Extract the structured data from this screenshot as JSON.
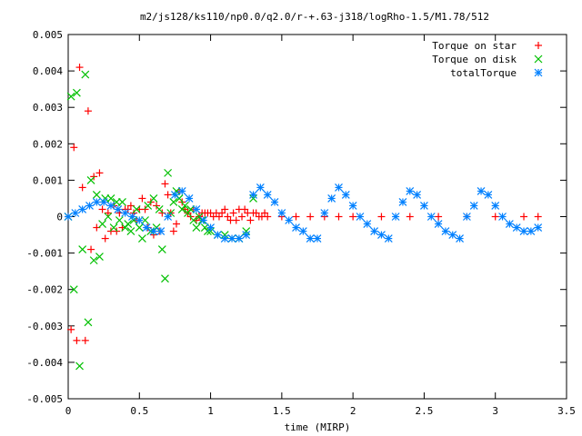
{
  "chart_data": {
    "type": "scatter",
    "title": "m2/js128/ks110/np0.0/q2.0/r-+.63-j318/logRho-1.5/M1.78/512",
    "xlabel": "time (MIRP)",
    "ylabel": "",
    "xlim": [
      0,
      3.5
    ],
    "ylim": [
      -0.005,
      0.005
    ],
    "xticks": [
      0,
      0.5,
      1,
      1.5,
      2,
      2.5,
      3,
      3.5
    ],
    "xtick_labels": [
      "0",
      "0.5",
      "1",
      "1.5",
      "2",
      "2.5",
      "3",
      "3.5"
    ],
    "yticks": [
      -0.005,
      -0.004,
      -0.003,
      -0.002,
      -0.001,
      0,
      0.001,
      0.002,
      0.003,
      0.004,
      0.005
    ],
    "ytick_labels": [
      "-0.005",
      "-0.004",
      "-0.003",
      "-0.002",
      "-0.001",
      "0",
      "0.001",
      "0.002",
      "0.003",
      "0.004",
      "0.005"
    ],
    "grid": false,
    "legend_position": "top-right",
    "series": [
      {
        "name": "Torque on star",
        "marker": "plus",
        "color": "#ff0000",
        "x": [
          0.0,
          0.02,
          0.04,
          0.06,
          0.08,
          0.1,
          0.12,
          0.14,
          0.16,
          0.18,
          0.2,
          0.22,
          0.24,
          0.26,
          0.28,
          0.3,
          0.32,
          0.34,
          0.36,
          0.38,
          0.4,
          0.42,
          0.44,
          0.46,
          0.48,
          0.5,
          0.52,
          0.54,
          0.56,
          0.58,
          0.6,
          0.62,
          0.64,
          0.66,
          0.68,
          0.7,
          0.72,
          0.74,
          0.76,
          0.78,
          0.8,
          0.82,
          0.84,
          0.86,
          0.88,
          0.9,
          0.92,
          0.94,
          0.96,
          0.98,
          1.0,
          1.02,
          1.04,
          1.06,
          1.08,
          1.1,
          1.12,
          1.14,
          1.16,
          1.18,
          1.2,
          1.22,
          1.24,
          1.26,
          1.28,
          1.3,
          1.32,
          1.34,
          1.36,
          1.38,
          1.4,
          1.5,
          1.6,
          1.7,
          1.8,
          1.9,
          2.0,
          2.2,
          2.4,
          2.6,
          2.8,
          3.0,
          3.2,
          3.3
        ],
        "y": [
          0.0,
          -0.0031,
          0.0019,
          -0.0034,
          0.0041,
          0.0008,
          -0.0034,
          0.0029,
          -0.0009,
          0.0011,
          -0.0003,
          0.0012,
          0.0002,
          -0.0006,
          0.0001,
          -0.0004,
          0.0003,
          -0.0004,
          0.0001,
          -0.0003,
          0.0002,
          0.0002,
          0.0003,
          0.0001,
          -0.0001,
          0.0002,
          0.0005,
          0.0002,
          -0.0003,
          0.0004,
          -0.0005,
          0.0003,
          -0.0004,
          0.0001,
          0.0009,
          0.0006,
          0.0001,
          -0.0004,
          -0.0002,
          0.0007,
          0.0004,
          0.0002,
          0.0001,
          0.0,
          0.0002,
          -0.0001,
          0.0,
          0.0001,
          0.0001,
          0.0001,
          0.0001,
          0.0,
          0.0001,
          0.0,
          0.0001,
          0.0002,
          0.0,
          -0.0001,
          0.0001,
          -0.0001,
          0.0002,
          0.0,
          0.0002,
          0.0001,
          -0.0001,
          0.0001,
          0.0001,
          0.0,
          0.0,
          0.0001,
          0.0,
          0.0,
          0.0,
          0.0,
          0.0,
          0.0,
          0.0,
          0.0,
          0.0,
          0.0,
          0.0,
          0.0,
          0.0,
          0.0
        ]
      },
      {
        "name": "Torque on disk",
        "marker": "cross",
        "color": "#00c000",
        "x": [
          0.0,
          0.02,
          0.04,
          0.06,
          0.08,
          0.1,
          0.12,
          0.14,
          0.16,
          0.18,
          0.2,
          0.22,
          0.24,
          0.26,
          0.28,
          0.3,
          0.32,
          0.34,
          0.36,
          0.38,
          0.4,
          0.42,
          0.44,
          0.46,
          0.48,
          0.5,
          0.52,
          0.54,
          0.56,
          0.58,
          0.6,
          0.62,
          0.64,
          0.66,
          0.68,
          0.7,
          0.72,
          0.74,
          0.76,
          0.78,
          0.8,
          0.82,
          0.84,
          0.86,
          0.88,
          0.9,
          0.92,
          0.94,
          0.96,
          0.98,
          1.0,
          1.05,
          1.1,
          1.15,
          1.2,
          1.25,
          1.3
        ],
        "y": [
          0.0,
          0.0033,
          -0.002,
          0.0034,
          -0.0041,
          -0.0009,
          0.0039,
          -0.0029,
          0.001,
          -0.0012,
          0.0006,
          -0.0011,
          -0.0002,
          0.0005,
          0.0,
          0.0005,
          -0.0003,
          0.0004,
          -0.0001,
          0.0004,
          -0.0003,
          -0.0002,
          -0.0004,
          -0.0001,
          0.0002,
          -0.0003,
          -0.0006,
          -0.0001,
          0.0003,
          -0.0004,
          0.0005,
          -0.0003,
          0.0002,
          -0.0009,
          -0.0017,
          0.0012,
          0.0001,
          0.0004,
          0.0007,
          0.0005,
          0.0002,
          0.0003,
          0.0001,
          0.0002,
          -0.0001,
          -0.0003,
          0.0,
          -0.0001,
          -0.0003,
          -0.0004,
          -0.0004,
          -0.0005,
          -0.0005,
          -0.0006,
          -0.0006,
          -0.0004,
          0.0005
        ]
      },
      {
        "name": "totalTorque",
        "marker": "star",
        "color": "#0080ff",
        "x": [
          0.0,
          0.05,
          0.1,
          0.15,
          0.2,
          0.25,
          0.3,
          0.35,
          0.4,
          0.45,
          0.5,
          0.55,
          0.6,
          0.65,
          0.7,
          0.75,
          0.8,
          0.85,
          0.9,
          0.95,
          1.0,
          1.05,
          1.1,
          1.15,
          1.2,
          1.25,
          1.3,
          1.35,
          1.4,
          1.45,
          1.5,
          1.55,
          1.6,
          1.65,
          1.7,
          1.75,
          1.8,
          1.85,
          1.9,
          1.95,
          2.0,
          2.05,
          2.1,
          2.15,
          2.2,
          2.25,
          2.3,
          2.35,
          2.4,
          2.45,
          2.5,
          2.55,
          2.6,
          2.65,
          2.7,
          2.75,
          2.8,
          2.85,
          2.9,
          2.95,
          3.0,
          3.05,
          3.1,
          3.15,
          3.2,
          3.25,
          3.3
        ],
        "y": [
          0.0,
          0.0001,
          0.0002,
          0.0003,
          0.0004,
          0.0004,
          0.0003,
          0.0002,
          0.0001,
          0.0,
          -0.0001,
          -0.0003,
          -0.0004,
          -0.0004,
          0.0,
          0.0006,
          0.0007,
          0.0005,
          0.0002,
          -0.0001,
          -0.0003,
          -0.0005,
          -0.0006,
          -0.0006,
          -0.0006,
          -0.0005,
          0.0006,
          0.0008,
          0.0006,
          0.0004,
          0.0001,
          -0.0001,
          -0.0003,
          -0.0004,
          -0.0006,
          -0.0006,
          0.0001,
          0.0005,
          0.0008,
          0.0006,
          0.0003,
          0.0,
          -0.0002,
          -0.0004,
          -0.0005,
          -0.0006,
          0.0,
          0.0004,
          0.0007,
          0.0006,
          0.0003,
          0.0,
          -0.0002,
          -0.0004,
          -0.0005,
          -0.0006,
          0.0,
          0.0003,
          0.0007,
          0.0006,
          0.0003,
          0.0,
          -0.0002,
          -0.0003,
          -0.0004,
          -0.0004,
          -0.0003
        ]
      }
    ]
  }
}
